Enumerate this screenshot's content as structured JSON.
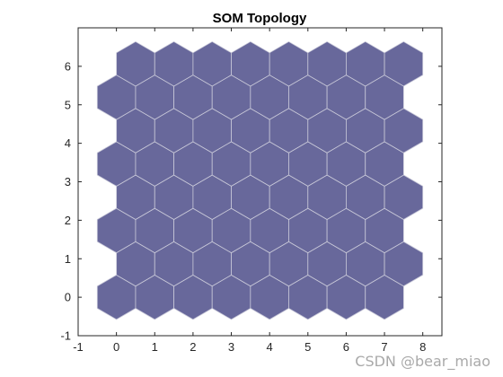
{
  "chart_data": {
    "type": "hexagonal-topology",
    "title": "SOM Topology",
    "grid": {
      "columns": 8,
      "rows": 8
    },
    "xlim": [
      -1,
      8.5
    ],
    "ylim": [
      -1,
      7
    ],
    "xticks": [
      -1,
      0,
      1,
      2,
      3,
      4,
      5,
      6,
      7,
      8
    ],
    "yticks": [
      -1,
      0,
      1,
      2,
      3,
      4,
      5,
      6
    ],
    "xticklabels": [
      "-1",
      "0",
      "1",
      "2",
      "3",
      "4",
      "5",
      "6",
      "7",
      "8"
    ],
    "yticklabels": [
      "-1",
      "0",
      "1",
      "2",
      "3",
      "4",
      "5",
      "6"
    ],
    "odd_row_offset": 0.5,
    "row_spacing": 0.866,
    "fill_color": "#68689b",
    "edge_color": "#c8c8d8",
    "grid_on": false
  },
  "watermark": "CSDN @bear_miao"
}
